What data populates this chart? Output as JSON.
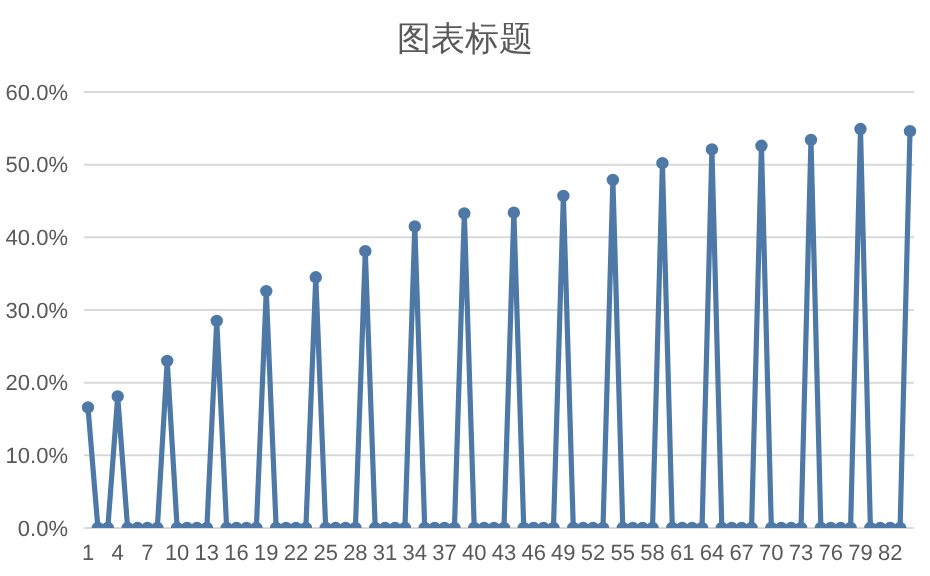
{
  "chart_data": {
    "type": "line",
    "title": "图表标题",
    "categories": [
      "1",
      null,
      null,
      "4",
      null,
      null,
      "7",
      null,
      null,
      "10",
      null,
      null,
      "13",
      null,
      null,
      "16",
      null,
      null,
      "19",
      null,
      null,
      "22",
      null,
      null,
      "25",
      null,
      null,
      "28",
      null,
      null,
      "31",
      null,
      null,
      "34",
      null,
      null,
      "37",
      null,
      null,
      "40",
      null,
      null,
      "43",
      null,
      null,
      "46",
      null,
      null,
      "49",
      null,
      null,
      "52",
      null,
      null,
      "55",
      null,
      null,
      "58",
      null,
      null,
      "61",
      null,
      null,
      "64",
      null,
      null,
      "67",
      null,
      null,
      "70",
      null,
      null,
      "73",
      null,
      null,
      "76",
      null,
      null,
      "79",
      null,
      null,
      "82",
      null,
      null
    ],
    "series": [
      {
        "color": "#4e79a7",
        "values": [
          16.6,
          0,
          0,
          18.1,
          0,
          0,
          0,
          0,
          23.0,
          0,
          0,
          0,
          0,
          28.5,
          0,
          0,
          0,
          0,
          32.6,
          0,
          0,
          0,
          0,
          34.5,
          0,
          0,
          0,
          0,
          38.1,
          0,
          0,
          0,
          0,
          41.5,
          0,
          0,
          0,
          0,
          43.3,
          0,
          0,
          0,
          0,
          43.4,
          0,
          0,
          0,
          0,
          45.7,
          0,
          0,
          0,
          0,
          47.9,
          0,
          0,
          0,
          0,
          50.2,
          0,
          0,
          0,
          0,
          52.1,
          0,
          0,
          0,
          0,
          52.6,
          0,
          0,
          0,
          0,
          53.4,
          0,
          0,
          0,
          0,
          54.9,
          0,
          0,
          0,
          0,
          54.6
        ]
      }
    ],
    "ylim": [
      0,
      60
    ],
    "yticks": [
      {
        "value": 0,
        "label": "0.0%"
      },
      {
        "value": 10,
        "label": "10.0%"
      },
      {
        "value": 20,
        "label": "20.0%"
      },
      {
        "value": 30,
        "label": "30.0%"
      },
      {
        "value": 40,
        "label": "40.0%"
      },
      {
        "value": 50,
        "label": "50.0%"
      },
      {
        "value": 60,
        "label": "60.0%"
      }
    ],
    "grid": "y",
    "marker": "circle",
    "line_style": "solid",
    "legend": false
  }
}
